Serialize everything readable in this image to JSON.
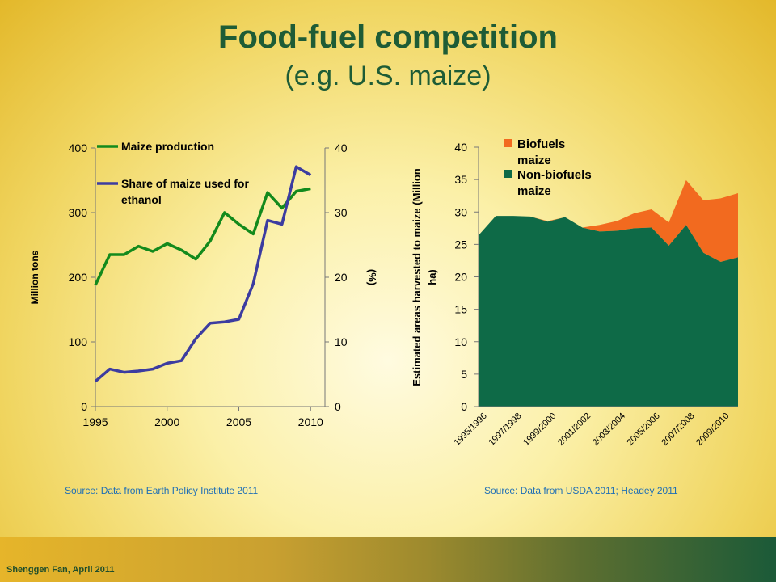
{
  "slide": {
    "title": "Food-fuel competition",
    "subtitle": "(e.g. U.S. maize)",
    "source_left": "Source: Data from Earth Policy Institute 2011",
    "source_right": "Source: Data from USDA 2011; Headey 2011",
    "footer": "Shenggen Fan, April 2011"
  },
  "chart_data": [
    {
      "type": "line",
      "title": "",
      "xlabel": "",
      "ylabel": "Million  tons",
      "y2label": "(%)",
      "xlim": [
        1995,
        2011
      ],
      "ylim": [
        0,
        400
      ],
      "y2lim": [
        0,
        40
      ],
      "xticks": [
        "1995",
        "2000",
        "2005",
        "2010"
      ],
      "yticks": [
        "0",
        "100",
        "200",
        "300",
        "400"
      ],
      "y2ticks": [
        "0",
        "10",
        "20",
        "30",
        "40"
      ],
      "legend_position": "top-left",
      "grid": false,
      "x": [
        1995,
        1996,
        1997,
        1998,
        1999,
        2000,
        2001,
        2002,
        2003,
        2004,
        2005,
        2006,
        2007,
        2008,
        2009,
        2010
      ],
      "series": [
        {
          "name": "Maize production",
          "axis": "left",
          "color": "#138a1c",
          "values": [
            188,
            235,
            235,
            248,
            240,
            252,
            242,
            228,
            256,
            300,
            282,
            267,
            331,
            307,
            333,
            337
          ]
        },
        {
          "name": "Share of maize used for ethanol",
          "axis": "right",
          "color": "#3c3ca0",
          "values": [
            3.9,
            5.8,
            5.3,
            5.5,
            5.8,
            6.7,
            7.1,
            10.5,
            12.9,
            13.1,
            13.5,
            19.0,
            28.8,
            28.2,
            37.1,
            35.8
          ]
        }
      ]
    },
    {
      "type": "area",
      "title": "",
      "xlabel": "",
      "ylabel": "Estimated areas harvested to maize (Million ha)",
      "ylim": [
        0,
        40
      ],
      "yticks": [
        "0",
        "5",
        "10",
        "15",
        "20",
        "25",
        "30",
        "35",
        "40"
      ],
      "legend_position": "top-right",
      "grid": false,
      "categories": [
        "1995/1996",
        "1996/1997",
        "1997/1998",
        "1998/1999",
        "1999/2000",
        "2000/2001",
        "2001/2002",
        "2002/2003",
        "2003/2004",
        "2004/2005",
        "2005/2006",
        "2006/2007",
        "2007/2008",
        "2008/2009",
        "2009/2010",
        "2010/2011"
      ],
      "tick_labels": [
        "1995/1996",
        "1997/1998",
        "1999/2000",
        "2001/2002",
        "2003/2004",
        "2005/2006",
        "2007/2008",
        "2009/2010"
      ],
      "stacked": true,
      "series": [
        {
          "name": "Non-biofuels maize",
          "color": "#0e6a47",
          "values": [
            26.4,
            29.4,
            29.4,
            29.3,
            28.5,
            29.2,
            27.6,
            27.0,
            27.1,
            27.5,
            27.6,
            24.8,
            28.0,
            23.7,
            22.3,
            23.0
          ]
        },
        {
          "name": "Biofuels maize",
          "color": "#f26a1f",
          "values": [
            0.0,
            0.0,
            0.0,
            0.0,
            0.1,
            0.0,
            0.0,
            1.0,
            1.5,
            2.3,
            2.8,
            3.6,
            6.9,
            8.1,
            9.8,
            9.9
          ]
        }
      ]
    }
  ]
}
